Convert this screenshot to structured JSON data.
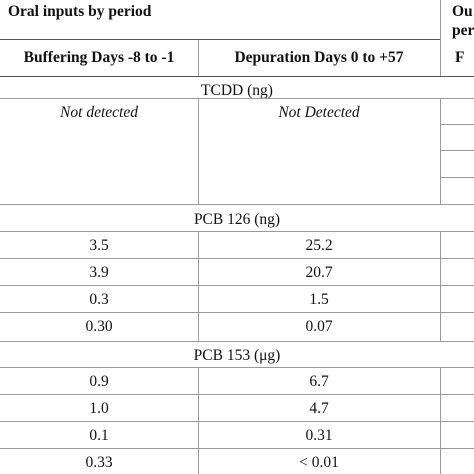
{
  "header": {
    "group_label": "Oral inputs by period",
    "right_label_line1": "Ou",
    "right_label_line2": "per",
    "col1": "Buffering Days -8 to -1",
    "col2": "Depuration Days 0 to +57",
    "col3": "F"
  },
  "sections": [
    {
      "title": "TCDD (ng)",
      "rows": [
        {
          "c1": "Not detected",
          "c2": "Not Detected"
        }
      ]
    },
    {
      "title": "PCB 126 (ng)",
      "rows": [
        {
          "c1": "3.5",
          "c2": "25.2"
        },
        {
          "c1": "3.9",
          "c2": "20.7"
        },
        {
          "c1": "0.3",
          "c2": "1.5"
        },
        {
          "c1": "0.30",
          "c2": "0.07"
        }
      ]
    },
    {
      "title": "PCB 153 (μg)",
      "rows": [
        {
          "c1": "0.9",
          "c2": "6.7"
        },
        {
          "c1": "1.0",
          "c2": "4.7"
        },
        {
          "c1": "0.1",
          "c2": "0.31"
        },
        {
          "c1": "0.33",
          "c2": "< 0.01"
        }
      ]
    }
  ]
}
